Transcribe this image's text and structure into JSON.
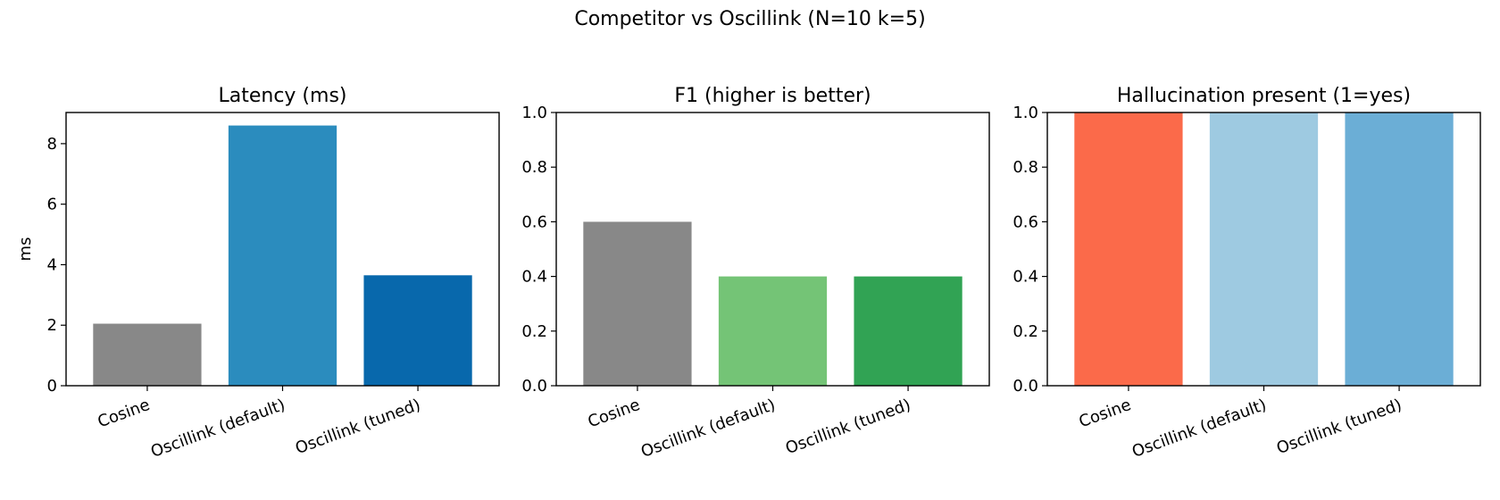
{
  "figure": {
    "suptitle": "Competitor vs Oscillink (N=10 k=5)"
  },
  "chart_data": [
    {
      "type": "bar",
      "title": "Latency (ms)",
      "xlabel": "",
      "ylabel": "ms",
      "categories": [
        "Cosine",
        "Oscillink (default)",
        "Oscillink (tuned)"
      ],
      "values": [
        2.05,
        8.6,
        3.65
      ],
      "colors": [
        "#888888",
        "#2b8cbe",
        "#0868ac"
      ],
      "ylim": [
        0,
        9.03
      ],
      "yticks": [
        0,
        2,
        4,
        6,
        8
      ],
      "ytick_labels": [
        "0",
        "2",
        "4",
        "6",
        "8"
      ],
      "grid": false
    },
    {
      "type": "bar",
      "title": "F1 (higher is better)",
      "xlabel": "",
      "ylabel": "",
      "categories": [
        "Cosine",
        "Oscillink (default)",
        "Oscillink (tuned)"
      ],
      "values": [
        0.6,
        0.4,
        0.4
      ],
      "colors": [
        "#888888",
        "#74c476",
        "#31a354"
      ],
      "ylim": [
        0,
        1.0
      ],
      "yticks": [
        0,
        0.2,
        0.4,
        0.6,
        0.8,
        1.0
      ],
      "ytick_labels": [
        "0.0",
        "0.2",
        "0.4",
        "0.6",
        "0.8",
        "1.0"
      ],
      "grid": false
    },
    {
      "type": "bar",
      "title": "Hallucination present (1=yes)",
      "xlabel": "",
      "ylabel": "",
      "categories": [
        "Cosine",
        "Oscillink (default)",
        "Oscillink (tuned)"
      ],
      "values": [
        1,
        1,
        1
      ],
      "colors": [
        "#fb6a4a",
        "#9ecae1",
        "#6baed6"
      ],
      "ylim": [
        0,
        1.0
      ],
      "yticks": [
        0,
        0.2,
        0.4,
        0.6,
        0.8,
        1.0
      ],
      "ytick_labels": [
        "0.0",
        "0.2",
        "0.4",
        "0.6",
        "0.8",
        "1.0"
      ],
      "grid": false
    }
  ]
}
